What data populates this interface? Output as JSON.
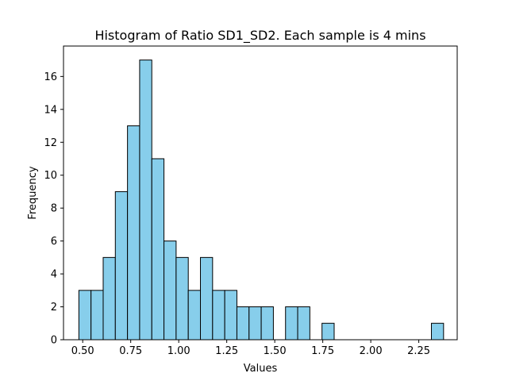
{
  "chart_data": {
    "type": "bar",
    "title": "Histogram of Ratio SD1_SD2. Each sample is 4 mins",
    "xlabel": "Values",
    "ylabel": "Frequency",
    "xlim": [
      0.4,
      2.45
    ],
    "ylim": [
      0,
      17.85
    ],
    "bin_start": 0.48,
    "bin_width": 0.0633,
    "values": [
      3,
      3,
      5,
      9,
      13,
      17,
      11,
      6,
      5,
      3,
      5,
      3,
      3,
      2,
      2,
      2,
      0,
      2,
      2,
      0,
      1,
      0,
      0,
      0,
      0,
      0,
      0,
      0,
      0,
      1
    ],
    "x_ticks": [
      0.5,
      0.75,
      1.0,
      1.25,
      1.5,
      1.75,
      2.0,
      2.25
    ],
    "x_tick_labels": [
      "0.50",
      "0.75",
      "1.00",
      "1.25",
      "1.50",
      "1.75",
      "2.00",
      "2.25"
    ],
    "y_ticks": [
      0,
      2,
      4,
      6,
      8,
      10,
      12,
      14,
      16
    ],
    "y_tick_labels": [
      "0",
      "2",
      "4",
      "6",
      "8",
      "10",
      "12",
      "14",
      "16"
    ],
    "grid": false,
    "bar_color": "#87ceeb",
    "edge_color": "#000000"
  }
}
